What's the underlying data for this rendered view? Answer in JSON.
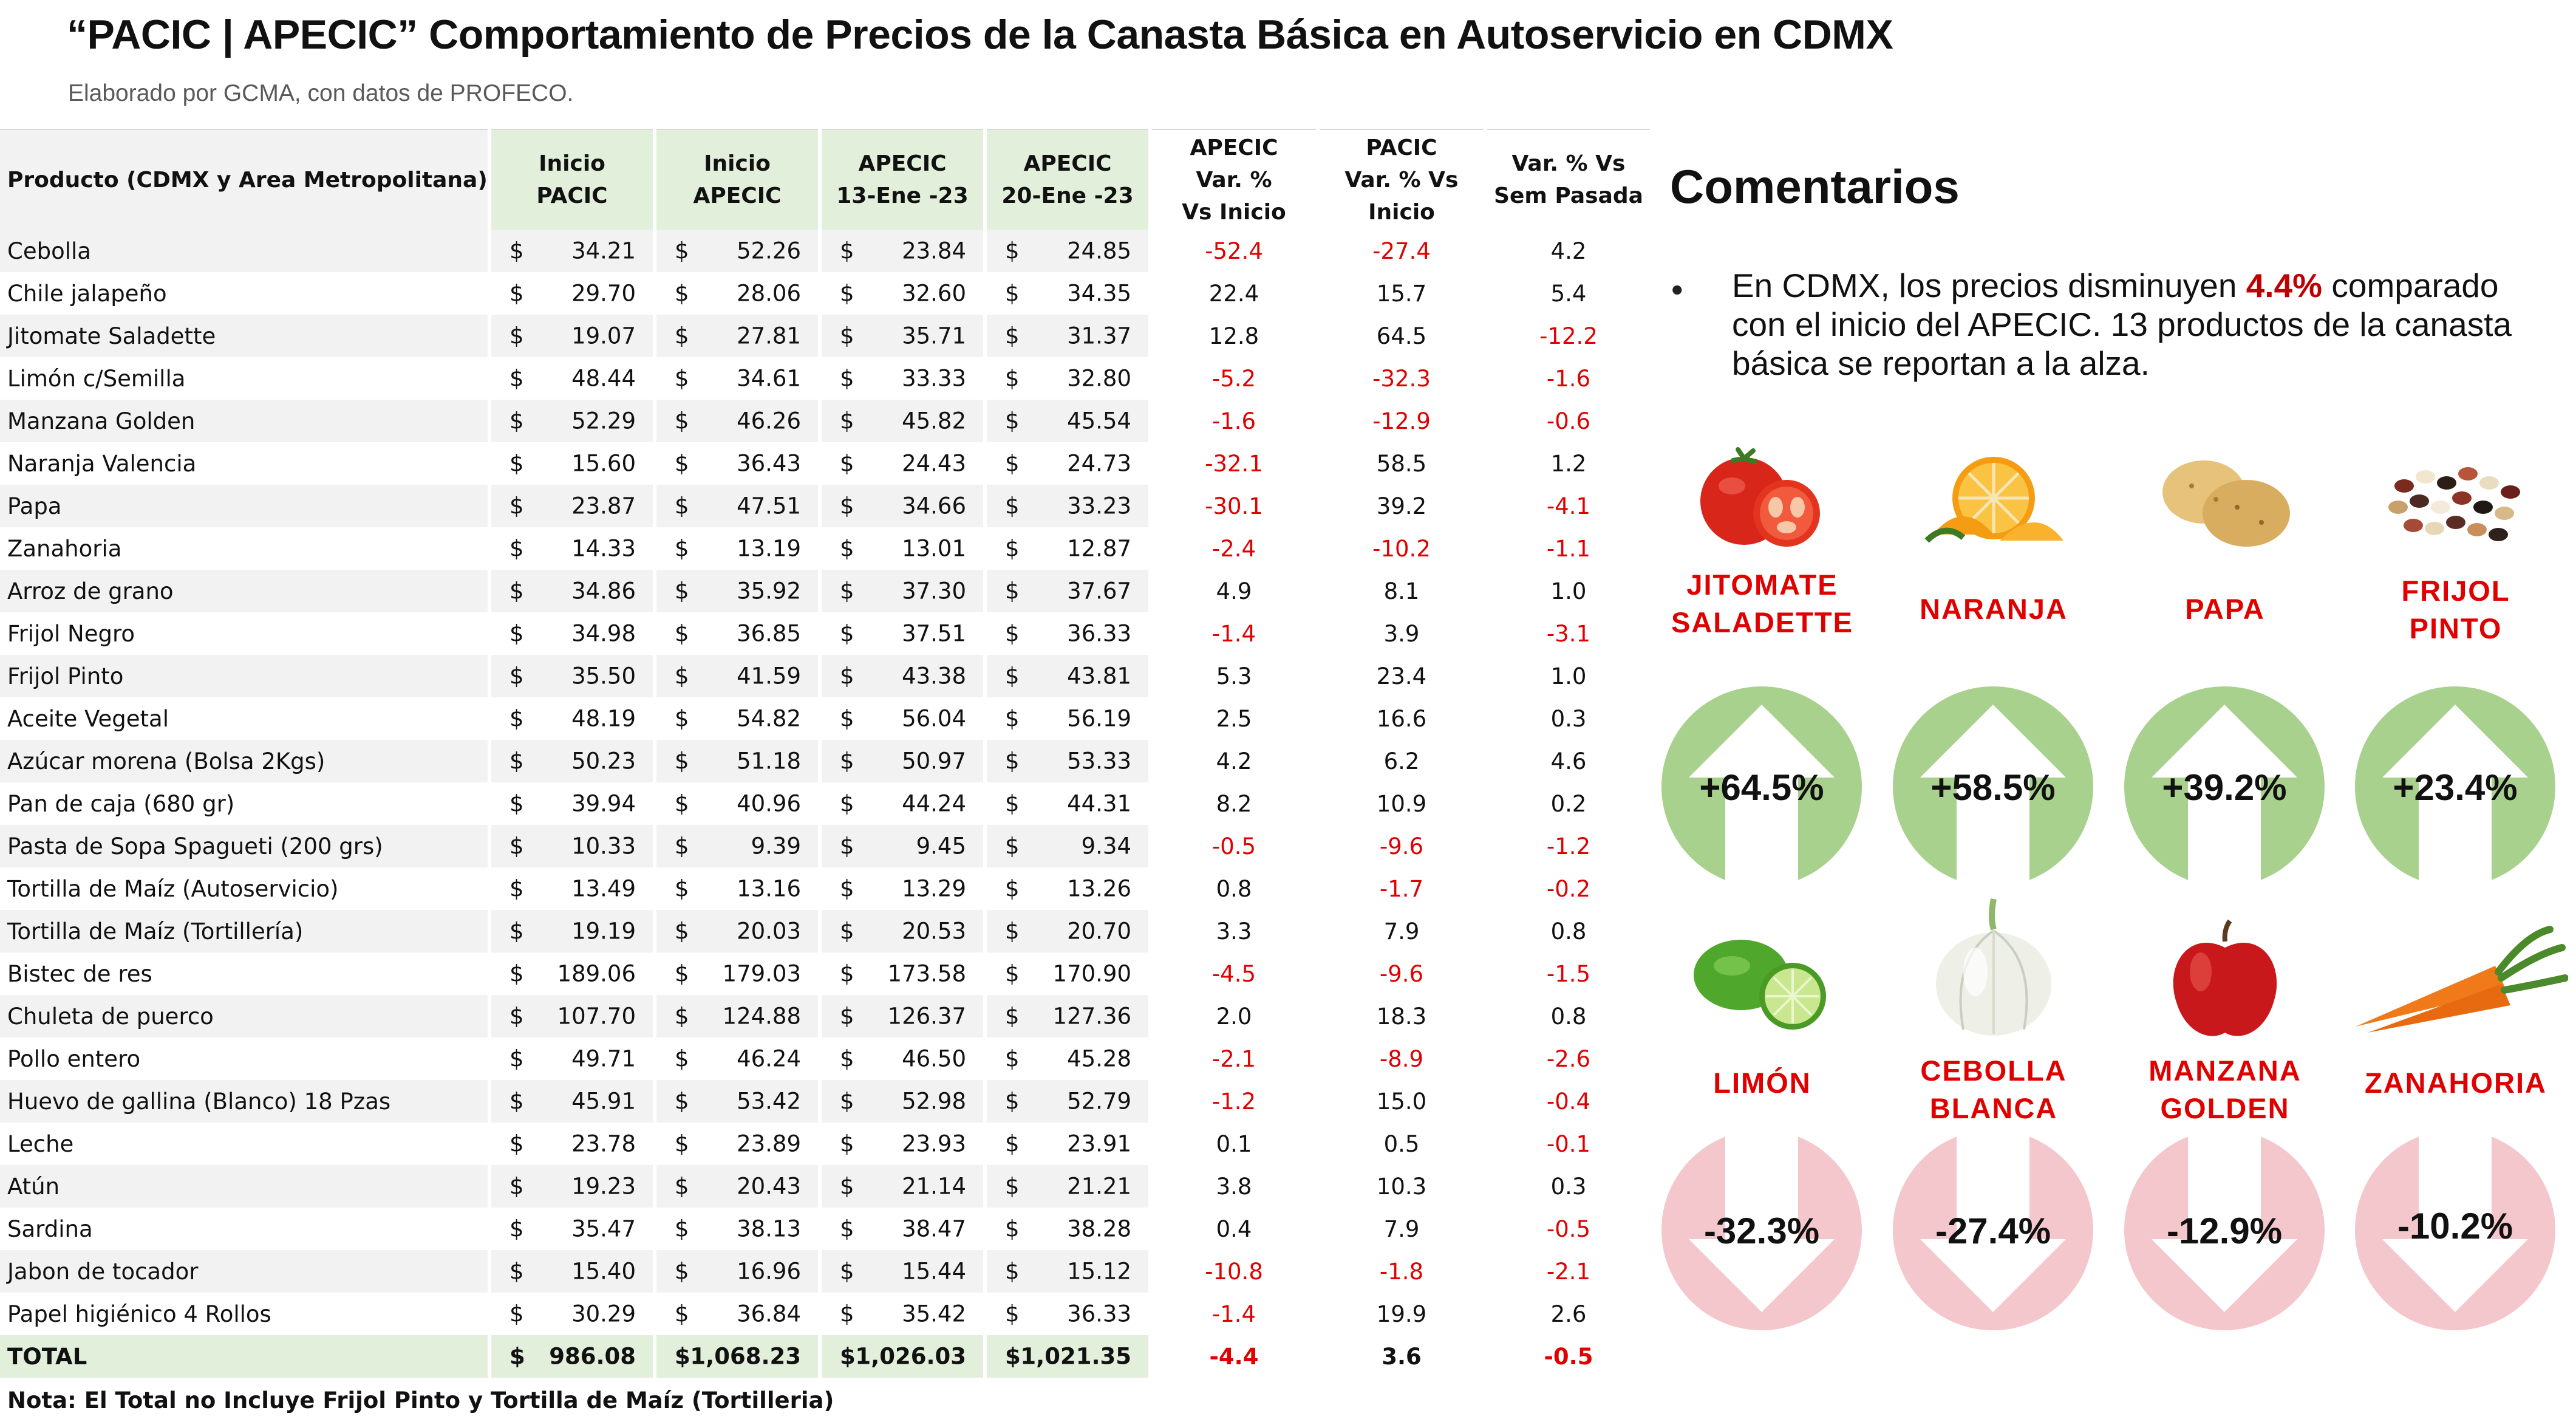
{
  "header": {
    "title": "“PACIC | APECIC” Comportamiento de Precios de la Canasta Básica en Autoservicio en CDMX",
    "subtitle": "Elaborado por GCMA, con datos de PROFECO."
  },
  "table": {
    "columns": {
      "product": "Producto (CDMX y Area Metropolitana)",
      "inicio_pacic": [
        "Inicio",
        "PACIC"
      ],
      "inicio_apecic": [
        "Inicio",
        "APECIC"
      ],
      "apecic_13": [
        "APECIC",
        "13-Ene -23"
      ],
      "apecic_20": [
        "APECIC",
        "20-Ene -23"
      ],
      "var_apecic": [
        "APECIC",
        "Var. %",
        "Vs  Inicio"
      ],
      "var_pacic": [
        "PACIC",
        "Var. % Vs",
        "Inicio"
      ],
      "var_sem": [
        "Var. % Vs",
        "Sem Pasada"
      ]
    },
    "currency": "$",
    "rows": [
      {
        "product": "Cebolla",
        "inicio_pacic": "34.21",
        "inicio_apecic": "52.26",
        "apecic_13": "23.84",
        "apecic_20": "24.85",
        "var_apecic": "-52.4",
        "var_pacic": "-27.4",
        "var_sem": "4.2"
      },
      {
        "product": "Chile jalapeño",
        "inicio_pacic": "29.70",
        "inicio_apecic": "28.06",
        "apecic_13": "32.60",
        "apecic_20": "34.35",
        "var_apecic": "22.4",
        "var_pacic": "15.7",
        "var_sem": "5.4"
      },
      {
        "product": "Jitomate Saladette",
        "inicio_pacic": "19.07",
        "inicio_apecic": "27.81",
        "apecic_13": "35.71",
        "apecic_20": "31.37",
        "var_apecic": "12.8",
        "var_pacic": "64.5",
        "var_sem": "-12.2"
      },
      {
        "product": "Limón c/Semilla",
        "inicio_pacic": "48.44",
        "inicio_apecic": "34.61",
        "apecic_13": "33.33",
        "apecic_20": "32.80",
        "var_apecic": "-5.2",
        "var_pacic": "-32.3",
        "var_sem": "-1.6"
      },
      {
        "product": "Manzana Golden",
        "inicio_pacic": "52.29",
        "inicio_apecic": "46.26",
        "apecic_13": "45.82",
        "apecic_20": "45.54",
        "var_apecic": "-1.6",
        "var_pacic": "-12.9",
        "var_sem": "-0.6"
      },
      {
        "product": "Naranja Valencia",
        "inicio_pacic": "15.60",
        "inicio_apecic": "36.43",
        "apecic_13": "24.43",
        "apecic_20": "24.73",
        "var_apecic": "-32.1",
        "var_pacic": "58.5",
        "var_sem": "1.2"
      },
      {
        "product": "Papa",
        "inicio_pacic": "23.87",
        "inicio_apecic": "47.51",
        "apecic_13": "34.66",
        "apecic_20": "33.23",
        "var_apecic": "-30.1",
        "var_pacic": "39.2",
        "var_sem": "-4.1"
      },
      {
        "product": "Zanahoria",
        "inicio_pacic": "14.33",
        "inicio_apecic": "13.19",
        "apecic_13": "13.01",
        "apecic_20": "12.87",
        "var_apecic": "-2.4",
        "var_pacic": "-10.2",
        "var_sem": "-1.1"
      },
      {
        "product": "Arroz de grano",
        "inicio_pacic": "34.86",
        "inicio_apecic": "35.92",
        "apecic_13": "37.30",
        "apecic_20": "37.67",
        "var_apecic": "4.9",
        "var_pacic": "8.1",
        "var_sem": "1.0"
      },
      {
        "product": "Frijol Negro",
        "inicio_pacic": "34.98",
        "inicio_apecic": "36.85",
        "apecic_13": "37.51",
        "apecic_20": "36.33",
        "var_apecic": "-1.4",
        "var_pacic": "3.9",
        "var_sem": "-3.1"
      },
      {
        "product": "Frijol Pinto",
        "inicio_pacic": "35.50",
        "inicio_apecic": "41.59",
        "apecic_13": "43.38",
        "apecic_20": "43.81",
        "var_apecic": "5.3",
        "var_pacic": "23.4",
        "var_sem": "1.0"
      },
      {
        "product": "Aceite Vegetal",
        "inicio_pacic": "48.19",
        "inicio_apecic": "54.82",
        "apecic_13": "56.04",
        "apecic_20": "56.19",
        "var_apecic": "2.5",
        "var_pacic": "16.6",
        "var_sem": "0.3"
      },
      {
        "product": "Azúcar morena (Bolsa 2Kgs)",
        "inicio_pacic": "50.23",
        "inicio_apecic": "51.18",
        "apecic_13": "50.97",
        "apecic_20": "53.33",
        "var_apecic": "4.2",
        "var_pacic": "6.2",
        "var_sem": "4.6"
      },
      {
        "product": "Pan de caja (680 gr)",
        "inicio_pacic": "39.94",
        "inicio_apecic": "40.96",
        "apecic_13": "44.24",
        "apecic_20": "44.31",
        "var_apecic": "8.2",
        "var_pacic": "10.9",
        "var_sem": "0.2"
      },
      {
        "product": "Pasta de Sopa Spagueti (200 grs)",
        "inicio_pacic": "10.33",
        "inicio_apecic": "9.39",
        "apecic_13": "9.45",
        "apecic_20": "9.34",
        "var_apecic": "-0.5",
        "var_pacic": "-9.6",
        "var_sem": "-1.2"
      },
      {
        "product": "Tortilla de Maíz (Autoservicio)",
        "inicio_pacic": "13.49",
        "inicio_apecic": "13.16",
        "apecic_13": "13.29",
        "apecic_20": "13.26",
        "var_apecic": "0.8",
        "var_pacic": "-1.7",
        "var_sem": "-0.2"
      },
      {
        "product": "Tortilla de Maíz (Tortillería)",
        "inicio_pacic": "19.19",
        "inicio_apecic": "20.03",
        "apecic_13": "20.53",
        "apecic_20": "20.70",
        "var_apecic": "3.3",
        "var_pacic": "7.9",
        "var_sem": "0.8"
      },
      {
        "product": "Bistec de res",
        "inicio_pacic": "189.06",
        "inicio_apecic": "179.03",
        "apecic_13": "173.58",
        "apecic_20": "170.90",
        "var_apecic": "-4.5",
        "var_pacic": "-9.6",
        "var_sem": "-1.5"
      },
      {
        "product": "Chuleta de puerco",
        "inicio_pacic": "107.70",
        "inicio_apecic": "124.88",
        "apecic_13": "126.37",
        "apecic_20": "127.36",
        "var_apecic": "2.0",
        "var_pacic": "18.3",
        "var_sem": "0.8"
      },
      {
        "product": "Pollo entero",
        "inicio_pacic": "49.71",
        "inicio_apecic": "46.24",
        "apecic_13": "46.50",
        "apecic_20": "45.28",
        "var_apecic": "-2.1",
        "var_pacic": "-8.9",
        "var_sem": "-2.6"
      },
      {
        "product": "Huevo de gallina (Blanco) 18 Pzas",
        "inicio_pacic": "45.91",
        "inicio_apecic": "53.42",
        "apecic_13": "52.98",
        "apecic_20": "52.79",
        "var_apecic": "-1.2",
        "var_pacic": "15.0",
        "var_sem": "-0.4"
      },
      {
        "product": "Leche",
        "inicio_pacic": "23.78",
        "inicio_apecic": "23.89",
        "apecic_13": "23.93",
        "apecic_20": "23.91",
        "var_apecic": "0.1",
        "var_pacic": "0.5",
        "var_sem": "-0.1"
      },
      {
        "product": "Atún",
        "inicio_pacic": "19.23",
        "inicio_apecic": "20.43",
        "apecic_13": "21.14",
        "apecic_20": "21.21",
        "var_apecic": "3.8",
        "var_pacic": "10.3",
        "var_sem": "0.3"
      },
      {
        "product": "Sardina",
        "inicio_pacic": "35.47",
        "inicio_apecic": "38.13",
        "apecic_13": "38.47",
        "apecic_20": "38.28",
        "var_apecic": "0.4",
        "var_pacic": "7.9",
        "var_sem": "-0.5"
      },
      {
        "product": "Jabon de tocador",
        "inicio_pacic": "15.40",
        "inicio_apecic": "16.96",
        "apecic_13": "15.44",
        "apecic_20": "15.12",
        "var_apecic": "-10.8",
        "var_pacic": "-1.8",
        "var_sem": "-2.1"
      },
      {
        "product": "Papel higiénico 4 Rollos",
        "inicio_pacic": "30.29",
        "inicio_apecic": "36.84",
        "apecic_13": "35.42",
        "apecic_20": "36.33",
        "var_apecic": "-1.4",
        "var_pacic": "19.9",
        "var_sem": "2.6"
      }
    ],
    "total": {
      "product": "TOTAL",
      "inicio_pacic": "986.08",
      "inicio_apecic": "1,068.23",
      "apecic_13": "1,026.03",
      "apecic_20": "1,021.35",
      "var_apecic": "-4.4",
      "var_pacic": "3.6",
      "var_sem": "-0.5"
    },
    "footnote": "Nota: El Total no Incluye Frijol Pinto y Tortilla de Maíz (Tortilleria)"
  },
  "comments": {
    "title": "Comentarios",
    "bullet_marker": "•",
    "text_before": "En CDMX, los precios disminuyen ",
    "highlight": "4.4%",
    "text_after": " comparado con el inicio del APECIC. 13 productos de la canasta básica se reportan a la alza."
  },
  "increases": [
    {
      "label_lines": [
        "JITOMATE",
        "SALADETTE"
      ],
      "pct": "+64.5%",
      "icon": "tomato-icon"
    },
    {
      "label_lines": [
        "NARANJA"
      ],
      "pct": "+58.5%",
      "icon": "orange-icon"
    },
    {
      "label_lines": [
        "PAPA"
      ],
      "pct": "+39.2%",
      "icon": "potato-icon"
    },
    {
      "label_lines": [
        "FRIJOL",
        "PINTO"
      ],
      "pct": "+23.4%",
      "icon": "beans-icon"
    }
  ],
  "decreases": [
    {
      "label_lines": [
        "LIMÓN"
      ],
      "pct": "-32.3%",
      "icon": "lime-icon"
    },
    {
      "label_lines": [
        "CEBOLLA",
        "BLANCA"
      ],
      "pct": "-27.4%",
      "icon": "onion-icon"
    },
    {
      "label_lines": [
        "MANZANA",
        "GOLDEN"
      ],
      "pct": "-12.9%",
      "icon": "apple-icon"
    },
    {
      "label_lines": [
        "ZANAHORIA"
      ],
      "pct": "-10.2%",
      "icon": "carrot-icon"
    }
  ],
  "colors": {
    "negative": "#e00000",
    "header_green": "#e2efda",
    "stripe_gray": "#f2f2f2",
    "up_circle": "#a9d18e",
    "down_circle": "#f4c7cc",
    "label_red": "#e00000",
    "highlight_red": "#c00000"
  }
}
